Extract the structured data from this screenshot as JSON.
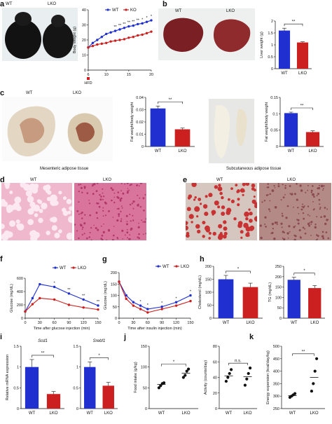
{
  "panels": {
    "a": "a",
    "b": "b",
    "c": "c",
    "d": "d",
    "e": "e",
    "f": "f",
    "g": "g",
    "h": "h",
    "i": "i",
    "j": "j",
    "k": "k"
  },
  "photo_labels": {
    "a_wt": "WT",
    "a_lko": "LKO",
    "b_wt": "WT",
    "b_lko": "LKO",
    "c_wt": "WT",
    "c_lko": "LKO",
    "c_mesenteric": "Mesenteric adipose tissue",
    "c_subcutaneous": "Subcutaneous adipose tissue",
    "d_wt": "WT",
    "d_lko": "LKO",
    "e_wt": "WT",
    "e_lko": "LKO"
  },
  "colors": {
    "wt": "#1f2fd0",
    "ko": "#cc1f1f",
    "he_pink": "#e9a3c2",
    "oro_red": "#c83232"
  },
  "chart_data": [
    {
      "id": "a_body_weight",
      "type": "line",
      "ylabel": "Body weight (g)",
      "xlabel": "HFD",
      "xticks": [
        6,
        10,
        15,
        20
      ],
      "yticks": [
        0,
        10,
        20,
        30,
        40
      ],
      "ylim": [
        0,
        40
      ],
      "xlim": [
        6,
        20
      ],
      "legend": [
        "WT",
        "KO"
      ],
      "x": [
        6,
        7,
        8,
        9,
        10,
        11,
        12,
        13,
        14,
        15,
        16,
        17,
        18,
        19,
        20
      ],
      "series": [
        {
          "name": "WT",
          "values": [
            15,
            18,
            20,
            22,
            24,
            25,
            26,
            27,
            28,
            29,
            29.5,
            30.5,
            31,
            32,
            33
          ]
        },
        {
          "name": "KO",
          "values": [
            15,
            16,
            17,
            17.5,
            18,
            19,
            19.5,
            20,
            20.5,
            21.5,
            22,
            23,
            23.5,
            24.5,
            25.5
          ]
        }
      ],
      "annotations": [
        "**",
        "**",
        "**",
        "**",
        "**",
        "**",
        "*",
        "*",
        "*"
      ]
    },
    {
      "id": "b_liver",
      "type": "bar",
      "ylabel": "Liver weight (g)",
      "categories": [
        "WT",
        "LKO"
      ],
      "values": [
        1.6,
        1.1
      ],
      "errors": [
        0.1,
        0.03
      ],
      "yticks": [
        0,
        0.5,
        1.0,
        1.5,
        2.0
      ],
      "ylim": [
        0,
        2.0
      ],
      "sig": "**"
    },
    {
      "id": "c_mesenteric",
      "type": "bar",
      "ylabel": "Fat weight/body weight",
      "categories": [
        "WT",
        "LKO"
      ],
      "values": [
        0.031,
        0.014
      ],
      "errors": [
        0.002,
        0.001
      ],
      "yticks": [
        0,
        0.01,
        0.02,
        0.03,
        0.04
      ],
      "ylim": [
        0,
        0.04
      ],
      "sig": "**"
    },
    {
      "id": "c_subcutaneous",
      "type": "bar",
      "ylabel": "Fat weight/body weight",
      "categories": [
        "WT",
        "LKO"
      ],
      "values": [
        0.102,
        0.044
      ],
      "errors": [
        0.003,
        0.004
      ],
      "yticks": [
        0,
        0.05,
        0.1,
        0.15
      ],
      "ylim": [
        0,
        0.15
      ],
      "sig": "**"
    },
    {
      "id": "f_gtt",
      "type": "line",
      "ylabel": "Glucose (mg/dL)",
      "xlabel": "Time after glucose injection (min)",
      "xticks": [
        0,
        30,
        60,
        90,
        120,
        150
      ],
      "yticks": [
        0,
        200,
        400,
        600
      ],
      "ylim": [
        0,
        600
      ],
      "xlim": [
        0,
        150
      ],
      "legend": [
        "WT",
        "LKO"
      ],
      "x": [
        0,
        15,
        30,
        60,
        90,
        120,
        150
      ],
      "series": [
        {
          "name": "WT",
          "values": [
            100,
            300,
            510,
            470,
            370,
            280,
            190
          ]
        },
        {
          "name": "LKO",
          "values": [
            100,
            210,
            300,
            280,
            200,
            160,
            130
          ]
        }
      ],
      "annotations": [
        "*",
        "**",
        "**",
        "**"
      ]
    },
    {
      "id": "g_itt",
      "type": "line",
      "ylabel": "Glucose (mg/dL)",
      "xlabel": "Time after insulin injection (min)",
      "xticks": [
        0,
        30,
        60,
        90,
        120,
        150
      ],
      "yticks": [
        0,
        50,
        100,
        150,
        200
      ],
      "ylim": [
        0,
        200
      ],
      "xlim": [
        0,
        150
      ],
      "legend": [
        "WT",
        "LKO"
      ],
      "x": [
        0,
        15,
        30,
        45,
        60,
        90,
        120,
        150
      ],
      "series": [
        {
          "name": "WT",
          "values": [
            160,
            100,
            70,
            55,
            40,
            50,
            70,
            100
          ]
        },
        {
          "name": "LKO",
          "values": [
            160,
            85,
            55,
            40,
            25,
            40,
            55,
            75
          ]
        }
      ],
      "annotations": [
        "*",
        "*",
        "*",
        "*",
        "*"
      ]
    },
    {
      "id": "h_cholesterol",
      "type": "bar",
      "ylabel": "Cholesterol (mg/dL)",
      "categories": [
        "WT",
        "LKO"
      ],
      "values": [
        150,
        120
      ],
      "errors": [
        15,
        15
      ],
      "yticks": [
        0,
        50,
        100,
        150,
        200
      ],
      "ylim": [
        0,
        200
      ],
      "sig": "*"
    },
    {
      "id": "h_tg",
      "type": "bar",
      "ylabel": "TG (mg/dL)",
      "categories": [
        "WT",
        "LKO"
      ],
      "values": [
        185,
        145
      ],
      "errors": [
        12,
        12
      ],
      "yticks": [
        0,
        50,
        100,
        150,
        200,
        250
      ],
      "ylim": [
        0,
        250
      ],
      "sig": "*"
    },
    {
      "id": "i_scd1",
      "type": "bar",
      "title": "Scd1",
      "ylabel": "Relative mRNA expression",
      "categories": [
        "WT",
        "LKO"
      ],
      "values": [
        1.0,
        0.35
      ],
      "errors": [
        0.18,
        0.06
      ],
      "yticks": [
        0,
        0.5,
        1.0,
        1.5
      ],
      "ylim": [
        0,
        1.5
      ],
      "sig": "**"
    },
    {
      "id": "i_srebf1",
      "type": "bar",
      "title": "Srebf1",
      "categories": [
        "WT",
        "LKO"
      ],
      "values": [
        1.0,
        0.55
      ],
      "errors": [
        0.12,
        0.08
      ],
      "yticks": [
        0,
        0.5,
        1.0,
        1.5
      ],
      "ylim": [
        0,
        1.5
      ],
      "sig": "*"
    },
    {
      "id": "j_food",
      "type": "scatter",
      "ylabel": "Food intake (g/kg)",
      "categories": [
        "WT",
        "LKO"
      ],
      "points": [
        [
          50,
          55,
          60,
          62
        ],
        [
          75,
          80,
          90,
          95
        ]
      ],
      "means": [
        58,
        85
      ],
      "yticks": [
        0,
        50,
        100,
        150
      ],
      "ylim": [
        0,
        150
      ],
      "sig": "*"
    },
    {
      "id": "j_activity",
      "type": "scatter",
      "ylabel": "Activity (counts/day)",
      "categories": [
        "WT",
        "LKO"
      ],
      "points": [
        [
          35,
          40,
          45,
          50
        ],
        [
          30,
          38,
          45,
          52
        ]
      ],
      "means": [
        42,
        41
      ],
      "yticks": [
        0,
        20,
        40,
        60,
        80
      ],
      "ylim": [
        0,
        80
      ],
      "sig": "n.s."
    },
    {
      "id": "k_energy",
      "type": "scatter",
      "ylabel": "Energy expension (kcal/day/kg)",
      "categories": [
        "WT",
        "LKO"
      ],
      "points": [
        [
          295,
          300,
          305,
          310
        ],
        [
          320,
          350,
          400,
          450
        ]
      ],
      "means": [
        302,
        375
      ],
      "yticks": [
        250,
        300,
        350,
        400,
        450,
        500
      ],
      "ylim": [
        250,
        500
      ],
      "sig": "**"
    }
  ]
}
